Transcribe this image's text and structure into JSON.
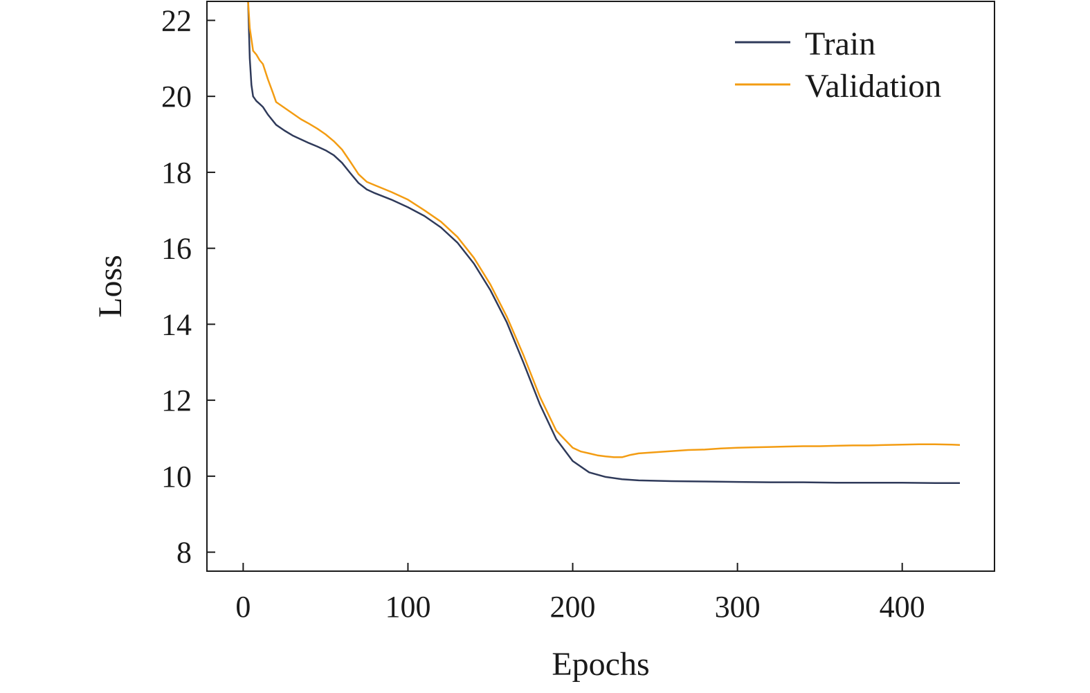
{
  "chart_data": {
    "type": "line",
    "title": "",
    "xlabel": "Epochs",
    "ylabel": "Loss",
    "xlim": [
      -22,
      456
    ],
    "ylim": [
      7.5,
      22.5
    ],
    "xticks": [
      0,
      100,
      200,
      300,
      400
    ],
    "yticks": [
      8,
      10,
      12,
      14,
      16,
      18,
      20,
      22
    ],
    "grid": false,
    "legend_position": "top-right",
    "series": [
      {
        "name": "Train",
        "color": "#2f3a5a",
        "points": [
          [
            3,
            22.5
          ],
          [
            4,
            21.0
          ],
          [
            5,
            20.3
          ],
          [
            6,
            20.0
          ],
          [
            8,
            19.88
          ],
          [
            10,
            19.8
          ],
          [
            12,
            19.72
          ],
          [
            15,
            19.52
          ],
          [
            20,
            19.25
          ],
          [
            25,
            19.1
          ],
          [
            30,
            18.97
          ],
          [
            35,
            18.87
          ],
          [
            40,
            18.77
          ],
          [
            45,
            18.68
          ],
          [
            50,
            18.58
          ],
          [
            55,
            18.45
          ],
          [
            60,
            18.25
          ],
          [
            65,
            17.98
          ],
          [
            70,
            17.72
          ],
          [
            75,
            17.55
          ],
          [
            80,
            17.45
          ],
          [
            90,
            17.28
          ],
          [
            100,
            17.08
          ],
          [
            110,
            16.85
          ],
          [
            120,
            16.55
          ],
          [
            130,
            16.15
          ],
          [
            140,
            15.6
          ],
          [
            150,
            14.9
          ],
          [
            160,
            14.05
          ],
          [
            170,
            13.0
          ],
          [
            180,
            11.9
          ],
          [
            190,
            10.98
          ],
          [
            200,
            10.4
          ],
          [
            210,
            10.1
          ],
          [
            220,
            9.98
          ],
          [
            230,
            9.92
          ],
          [
            240,
            9.89
          ],
          [
            260,
            9.87
          ],
          [
            280,
            9.86
          ],
          [
            300,
            9.85
          ],
          [
            320,
            9.84
          ],
          [
            340,
            9.84
          ],
          [
            360,
            9.83
          ],
          [
            380,
            9.83
          ],
          [
            400,
            9.83
          ],
          [
            420,
            9.82
          ],
          [
            435,
            9.82
          ]
        ]
      },
      {
        "name": "Validation",
        "color": "#f39c12",
        "points": [
          [
            3,
            22.5
          ],
          [
            4,
            21.8
          ],
          [
            6,
            21.2
          ],
          [
            8,
            21.1
          ],
          [
            10,
            20.95
          ],
          [
            12,
            20.85
          ],
          [
            15,
            20.45
          ],
          [
            18,
            20.1
          ],
          [
            20,
            19.85
          ],
          [
            25,
            19.7
          ],
          [
            30,
            19.55
          ],
          [
            35,
            19.4
          ],
          [
            40,
            19.28
          ],
          [
            45,
            19.15
          ],
          [
            50,
            19.0
          ],
          [
            55,
            18.82
          ],
          [
            60,
            18.6
          ],
          [
            65,
            18.28
          ],
          [
            70,
            17.95
          ],
          [
            75,
            17.75
          ],
          [
            80,
            17.66
          ],
          [
            90,
            17.48
          ],
          [
            100,
            17.28
          ],
          [
            110,
            17.0
          ],
          [
            120,
            16.7
          ],
          [
            130,
            16.3
          ],
          [
            140,
            15.75
          ],
          [
            150,
            15.05
          ],
          [
            160,
            14.2
          ],
          [
            170,
            13.2
          ],
          [
            180,
            12.1
          ],
          [
            190,
            11.2
          ],
          [
            200,
            10.75
          ],
          [
            205,
            10.65
          ],
          [
            210,
            10.6
          ],
          [
            215,
            10.55
          ],
          [
            220,
            10.52
          ],
          [
            225,
            10.5
          ],
          [
            230,
            10.5
          ],
          [
            235,
            10.56
          ],
          [
            240,
            10.6
          ],
          [
            250,
            10.63
          ],
          [
            260,
            10.66
          ],
          [
            270,
            10.69
          ],
          [
            280,
            10.7
          ],
          [
            290,
            10.73
          ],
          [
            300,
            10.75
          ],
          [
            310,
            10.76
          ],
          [
            320,
            10.77
          ],
          [
            330,
            10.78
          ],
          [
            340,
            10.79
          ],
          [
            350,
            10.79
          ],
          [
            360,
            10.8
          ],
          [
            370,
            10.81
          ],
          [
            380,
            10.81
          ],
          [
            390,
            10.82
          ],
          [
            400,
            10.83
          ],
          [
            410,
            10.84
          ],
          [
            420,
            10.84
          ],
          [
            430,
            10.83
          ],
          [
            435,
            10.82
          ]
        ]
      }
    ]
  }
}
